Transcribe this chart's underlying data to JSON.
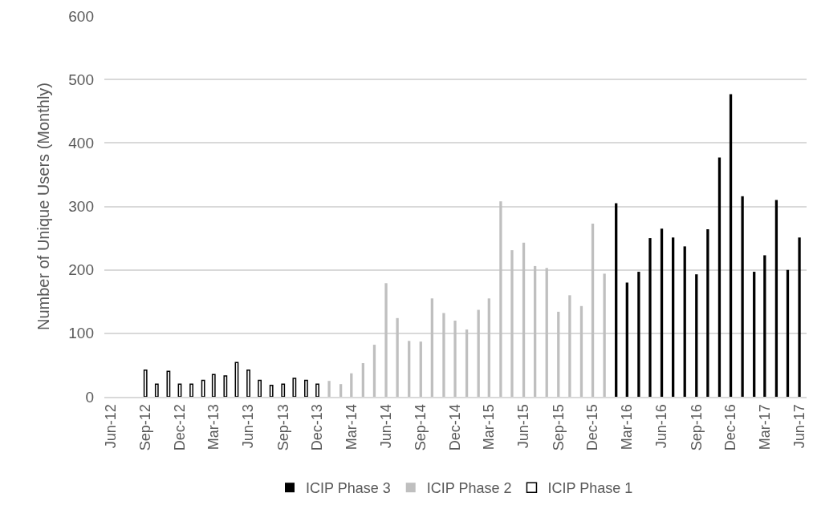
{
  "chart_data": {
    "type": "bar",
    "ylabel": "Number of Unique Users (Monthly)",
    "series": [
      {
        "name": "ICIP Phase 3",
        "color": "#000000",
        "x": [
          "2016-02",
          "2016-03",
          "2016-04",
          "2016-05",
          "2016-06",
          "2016-07",
          "2016-08",
          "2016-09",
          "2016-10",
          "2016-11",
          "2016-12",
          "2017-01",
          "2017-02",
          "2017-03",
          "2017-04",
          "2017-05",
          "2017-06"
        ],
        "values": [
          305,
          180,
          197,
          250,
          265,
          251,
          237,
          193,
          264,
          377,
          477,
          316,
          197,
          223,
          310,
          200,
          251
        ]
      },
      {
        "name": "ICIP Phase 2",
        "color": "#bfbfbf",
        "x": [
          "2014-01",
          "2014-02",
          "2014-03",
          "2014-04",
          "2014-05",
          "2014-06",
          "2014-07",
          "2014-08",
          "2014-09",
          "2014-10",
          "2014-11",
          "2014-12",
          "2015-01",
          "2015-02",
          "2015-03",
          "2015-04",
          "2015-05",
          "2015-06",
          "2015-07",
          "2015-08",
          "2015-09",
          "2015-10",
          "2015-11",
          "2015-12",
          "2016-01"
        ],
        "values": [
          25,
          20,
          37,
          53,
          82,
          179,
          124,
          88,
          87,
          155,
          132,
          120,
          106,
          137,
          155,
          308,
          231,
          243,
          206,
          203,
          134,
          160,
          143,
          273,
          194
        ]
      },
      {
        "name": "ICIP Phase 1",
        "color": "#ffffff",
        "x": [
          "2012-09",
          "2012-10",
          "2012-11",
          "2012-12",
          "2013-01",
          "2013-02",
          "2013-03",
          "2013-04",
          "2013-05",
          "2013-06",
          "2013-07",
          "2013-08",
          "2013-09",
          "2013-10",
          "2013-11",
          "2013-12"
        ],
        "values": [
          42,
          20,
          40,
          20,
          20,
          26,
          35,
          33,
          54,
          42,
          26,
          18,
          20,
          29,
          26,
          20
        ]
      }
    ],
    "xlim": [
      "2012-05-15",
      "2017-06-20"
    ],
    "xticks": [
      {
        "value": "2012-06",
        "label": "Jun-12"
      },
      {
        "value": "2012-09",
        "label": "Sep-12"
      },
      {
        "value": "2012-12",
        "label": "Dec-12"
      },
      {
        "value": "2013-03",
        "label": "Mar-13"
      },
      {
        "value": "2013-06",
        "label": "Jun-13"
      },
      {
        "value": "2013-09",
        "label": "Sep-13"
      },
      {
        "value": "2013-12",
        "label": "Dec-13"
      },
      {
        "value": "2014-03",
        "label": "Mar-14"
      },
      {
        "value": "2014-06",
        "label": "Jun-14"
      },
      {
        "value": "2014-09",
        "label": "Sep-14"
      },
      {
        "value": "2014-12",
        "label": "Dec-14"
      },
      {
        "value": "2015-03",
        "label": "Mar-15"
      },
      {
        "value": "2015-06",
        "label": "Jun-15"
      },
      {
        "value": "2015-09",
        "label": "Sep-15"
      },
      {
        "value": "2015-12",
        "label": "Dec-15"
      },
      {
        "value": "2016-03",
        "label": "Mar-16"
      },
      {
        "value": "2016-06",
        "label": "Jun-16"
      },
      {
        "value": "2016-09",
        "label": "Sep-16"
      },
      {
        "value": "2016-12",
        "label": "Dec-16"
      },
      {
        "value": "2017-03",
        "label": "Mar-17"
      },
      {
        "value": "2017-06",
        "label": "Jun-17"
      }
    ],
    "ylim": [
      0,
      600
    ],
    "yticks": [
      0,
      100,
      200,
      300,
      400,
      500,
      600
    ],
    "grid": "y",
    "legend": "bottom"
  }
}
